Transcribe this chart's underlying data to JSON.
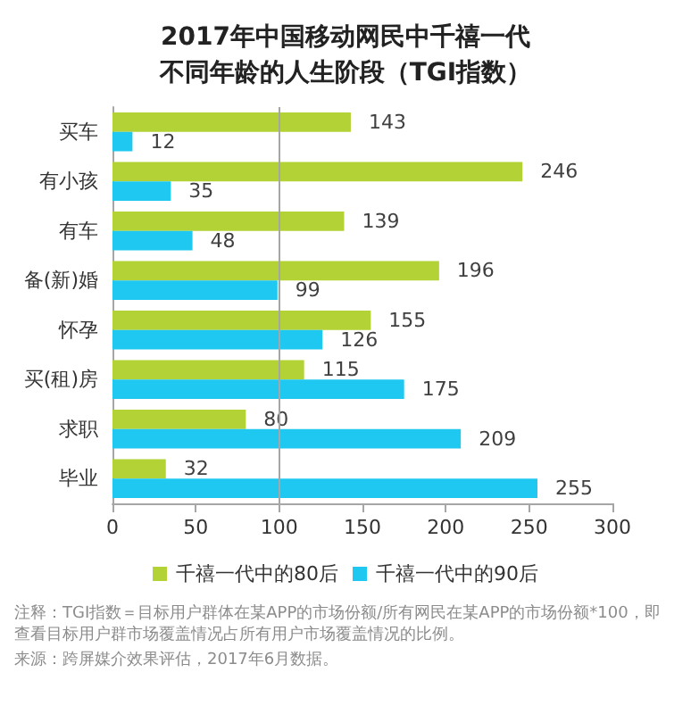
{
  "chart_data": {
    "type": "bar",
    "orientation": "horizontal",
    "title": "2017年中国移动网民中千禧一代不同年龄的人生阶段（TGI指数）",
    "categories": [
      "买车",
      "有小孩",
      "有车",
      "备(新)婚",
      "怀孕",
      "买(租)房",
      "求职",
      "毕业"
    ],
    "series": [
      {
        "name": "千禧一代中的80后",
        "color": "#b2d235",
        "values": [
          143,
          246,
          139,
          196,
          155,
          115,
          80,
          32
        ]
      },
      {
        "name": "千禧一代中的90后",
        "color": "#1ec8f0",
        "values": [
          12,
          35,
          48,
          99,
          126,
          175,
          209,
          255
        ]
      }
    ],
    "xlim": [
      0,
      300
    ],
    "xticks": [
      0,
      50,
      100,
      150,
      200,
      250,
      300
    ],
    "ref_lines": [
      {
        "axis": "x",
        "value": 100,
        "color": "#a6a6a6"
      }
    ],
    "data_labels": true,
    "grid": false,
    "legend": "bottom",
    "annotations": [
      "注释：TGI指数＝目标用户群体在某APP的市场份额/所有网民在某APP的市场份额*100，即查看目标用户群市场覆盖情况占所有用户市场覆盖情况的比例。",
      "来源：跨屏媒介效果评估，2017年6月数据。"
    ]
  }
}
